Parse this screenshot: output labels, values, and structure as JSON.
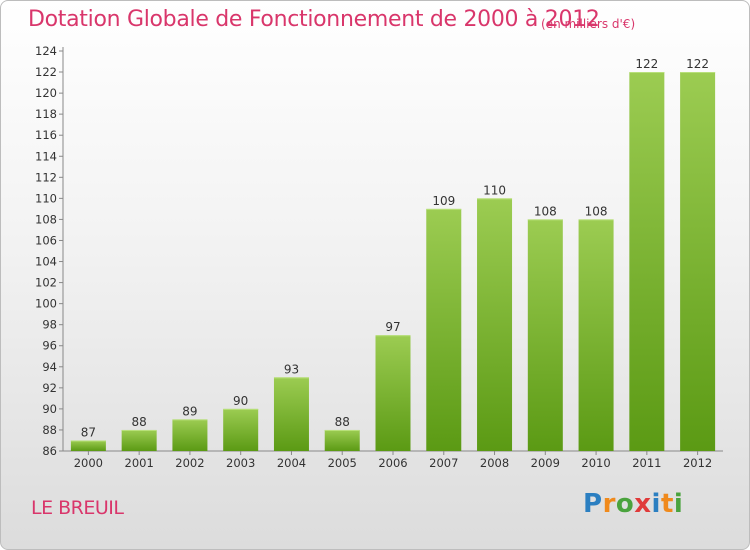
{
  "header": {
    "title": "Dotation Globale de Fonctionnement de 2000 à 2012",
    "subtitle": "(en milliers d'€)"
  },
  "footer": {
    "commune": "LE BREUIL",
    "logo": [
      "P",
      "r",
      "o",
      "x",
      "i",
      "t",
      "i"
    ]
  },
  "colors": {
    "title": "#d9366b",
    "bar_top": "#9ccc52",
    "bar_bottom": "#5b9a14",
    "logo": [
      "#2b7fc1",
      "#f08a1c",
      "#4aa33d",
      "#e03a3a",
      "#2b7fc1",
      "#f08a1c",
      "#4aa33d"
    ]
  },
  "chart_data": {
    "type": "bar",
    "categories": [
      "2000",
      "2001",
      "2002",
      "2003",
      "2004",
      "2005",
      "2006",
      "2007",
      "2008",
      "2009",
      "2010",
      "2011",
      "2012"
    ],
    "values": [
      87,
      88,
      89,
      90,
      93,
      88,
      97,
      109,
      110,
      108,
      108,
      122,
      122
    ],
    "ylim": [
      86,
      124
    ],
    "yticks": [
      86,
      88,
      90,
      92,
      94,
      96,
      98,
      100,
      102,
      104,
      106,
      108,
      110,
      112,
      114,
      116,
      118,
      120,
      122,
      124
    ],
    "grid": false,
    "legend": "none"
  }
}
